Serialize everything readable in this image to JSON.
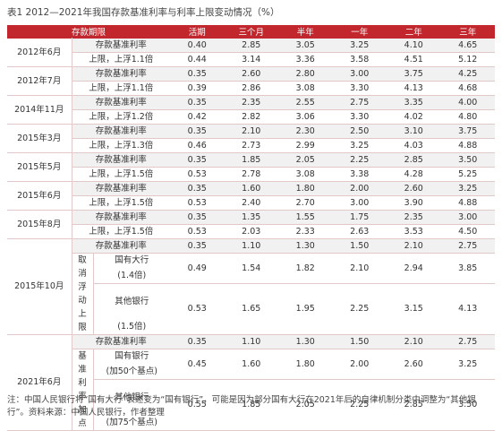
{
  "title": "表1 2012—2021年我国存款基准利率与利率上限变动情况（%）",
  "table": {
    "header": [
      "存款期限",
      "活期",
      "三个月",
      "半年",
      "一年",
      "二年",
      "三年"
    ],
    "groups": [
      {
        "date": "2012年6月",
        "rows": [
          {
            "label": "存款基准利率",
            "values": [
              "0.40",
              "2.85",
              "3.05",
              "3.25",
              "4.10",
              "4.65"
            ]
          },
          {
            "label": "上限，上浮1.1倍",
            "values": [
              "0.44",
              "3.14",
              "3.36",
              "3.58",
              "4.51",
              "5.12"
            ]
          }
        ]
      },
      {
        "date": "2012年7月",
        "rows": [
          {
            "label": "存款基准利率",
            "values": [
              "0.35",
              "2.60",
              "2.80",
              "3.00",
              "3.75",
              "4.25"
            ]
          },
          {
            "label": "上限，上浮1.1倍",
            "values": [
              "0.39",
              "2.86",
              "3.08",
              "3.30",
              "4.13",
              "4.68"
            ]
          }
        ]
      },
      {
        "date": "2014年11月",
        "rows": [
          {
            "label": "存款基准利率",
            "values": [
              "0.35",
              "2.35",
              "2.55",
              "2.75",
              "3.35",
              "4.00"
            ]
          },
          {
            "label": "上限，上浮1.2倍",
            "values": [
              "0.42",
              "2.82",
              "3.06",
              "3.30",
              "4.02",
              "4.80"
            ]
          }
        ]
      },
      {
        "date": "2015年3月",
        "rows": [
          {
            "label": "存款基准利率",
            "values": [
              "0.35",
              "2.10",
              "2.30",
              "2.50",
              "3.10",
              "3.75"
            ]
          },
          {
            "label": "上限，上浮1.3倍",
            "values": [
              "0.46",
              "2.73",
              "2.99",
              "3.25",
              "4.03",
              "4.88"
            ]
          }
        ]
      },
      {
        "date": "2015年5月",
        "rows": [
          {
            "label": "存款基准利率",
            "values": [
              "0.35",
              "1.85",
              "2.05",
              "2.25",
              "2.85",
              "3.50"
            ]
          },
          {
            "label": "上限，上浮1.5倍",
            "values": [
              "0.53",
              "2.78",
              "3.08",
              "3.38",
              "4.28",
              "5.25"
            ]
          }
        ]
      },
      {
        "date": "2015年6月",
        "rows": [
          {
            "label": "存款基准利率",
            "values": [
              "0.35",
              "1.60",
              "1.80",
              "2.00",
              "2.60",
              "3.25"
            ]
          },
          {
            "label": "上限，上浮1.5倍",
            "values": [
              "0.53",
              "2.40",
              "2.70",
              "3.00",
              "3.90",
              "4.88"
            ]
          }
        ]
      },
      {
        "date": "2015年8月",
        "rows": [
          {
            "label": "存款基准利率",
            "values": [
              "0.35",
              "1.35",
              "1.55",
              "1.75",
              "2.35",
              "3.00"
            ]
          },
          {
            "label": "上限，上浮1.5倍",
            "values": [
              "0.53",
              "2.03",
              "2.33",
              "2.63",
              "3.53",
              "4.50"
            ]
          }
        ]
      },
      {
        "date": "2015年10月",
        "rows": [
          {
            "label": "存款基准利率",
            "values": [
              "0.35",
              "1.10",
              "1.30",
              "1.50",
              "2.10",
              "2.75"
            ]
          }
        ],
        "sub_label": "取消浮动上限",
        "sub_rows": [
          {
            "name": "国有大行",
            "note": "(1.4倍)",
            "values": [
              "0.49",
              "1.54",
              "1.82",
              "2.10",
              "2.94",
              "3.85"
            ]
          },
          {
            "name": "其他银行",
            "note": "(1.5倍)",
            "values": [
              "0.53",
              "1.65",
              "1.95",
              "2.25",
              "3.15",
              "4.13"
            ]
          }
        ]
      },
      {
        "date": "2021年6月",
        "rows": [
          {
            "label": "存款基准利率",
            "values": [
              "0.35",
              "1.10",
              "1.30",
              "1.50",
              "2.10",
              "2.75"
            ]
          }
        ],
        "sub_label": "基准利率加点",
        "sub_rows": [
          {
            "name": "国有银行",
            "note": "(加50个基点)",
            "values": [
              "0.45",
              "1.60",
              "1.80",
              "2.00",
              "2.60",
              "3.25"
            ]
          },
          {
            "name": "其他银行",
            "note": "(加75个基点)",
            "values": [
              "0.55",
              "1.85",
              "2.05",
              "2.25",
              "2.85",
              "3.50"
            ]
          }
        ]
      }
    ]
  },
  "note": "注：中国人民银行将“国有大行”表述变为“国有银行”，可能是因为部分国有大行在2021年后的自律机制分类中调整为“其他银行”。资料来源：中国人民银行，作者整理"
}
